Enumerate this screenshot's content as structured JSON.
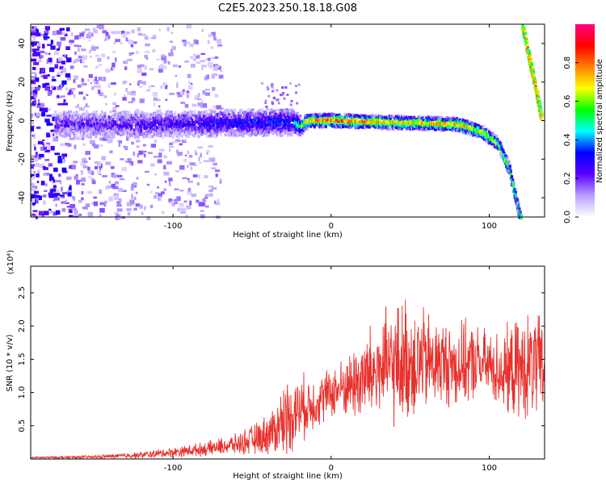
{
  "title": "C2E5.2023.250.18.18.G08",
  "chart_data": [
    {
      "type": "heatmap",
      "xlabel": "Height of straight line (km)",
      "ylabel": "Frequency (Hz)",
      "xlim": [
        -190,
        135
      ],
      "ylim": [
        -50,
        50
      ],
      "xticks": [
        {
          "v": -100,
          "label": "-100"
        },
        {
          "v": 0,
          "label": "0"
        },
        {
          "v": 100,
          "label": "100"
        }
      ],
      "yticks": [
        {
          "v": -40,
          "label": "-40"
        },
        {
          "v": -20,
          "label": "-20"
        },
        {
          "v": 0,
          "label": "0"
        },
        {
          "v": 20,
          "label": "20"
        },
        {
          "v": 40,
          "label": "40"
        }
      ],
      "colorbar": {
        "label": "Normalized spectral amplitude",
        "range": [
          0,
          1
        ],
        "ticks": [
          {
            "v": 0.0,
            "label": "0.0"
          },
          {
            "v": 0.2,
            "label": "0.2"
          },
          {
            "v": 0.4,
            "label": "0.4"
          },
          {
            "v": 0.6,
            "label": "0.6"
          },
          {
            "v": 0.8,
            "label": "0.8"
          }
        ],
        "colors": [
          "#ffffff",
          "#b8a0ff",
          "#5a00ff",
          "#0000ff",
          "#00ffff",
          "#00ff00",
          "#ffff00",
          "#ff8000",
          "#ff0000",
          "#ff0080"
        ]
      },
      "ridge": [
        {
          "x": -165,
          "y": -2,
          "amp": 0.2,
          "spread": 3
        },
        {
          "x": -120,
          "y": -2,
          "amp": 0.25,
          "spread": 3
        },
        {
          "x": -80,
          "y": -1.5,
          "amp": 0.3,
          "spread": 3
        },
        {
          "x": -40,
          "y": -1,
          "amp": 0.35,
          "spread": 3
        },
        {
          "x": -25,
          "y": -1,
          "amp": 0.35,
          "spread": 3
        },
        {
          "x": -20,
          "y": -3,
          "amp": 0.55,
          "spread": 2
        },
        {
          "x": -15,
          "y": 0,
          "amp": 0.8,
          "spread": 1.5
        },
        {
          "x": 0,
          "y": 0,
          "amp": 0.9,
          "spread": 1.5
        },
        {
          "x": 40,
          "y": -1,
          "amp": 0.75,
          "spread": 1.5
        },
        {
          "x": 80,
          "y": -2,
          "amp": 0.8,
          "spread": 1.5
        },
        {
          "x": 95,
          "y": -6,
          "amp": 0.7,
          "spread": 1.5
        },
        {
          "x": 105,
          "y": -12,
          "amp": 0.65,
          "spread": 1.5
        },
        {
          "x": 112,
          "y": -25,
          "amp": 0.6,
          "spread": 1.5
        },
        {
          "x": 119,
          "y": -50,
          "amp": 0.6,
          "spread": 1.5
        }
      ],
      "upper_ridge": [
        {
          "x": 121,
          "y": 50
        },
        {
          "x": 126,
          "y": 30
        },
        {
          "x": 130,
          "y": 15
        },
        {
          "x": 133,
          "y": 2
        }
      ]
    },
    {
      "type": "line",
      "xlabel": "Height of straight line (km)",
      "ylabel": "SNR (10 * v/v)",
      "y_multiplier": "(x10⁴)",
      "xlim": [
        -190,
        135
      ],
      "ylim": [
        0,
        2.9
      ],
      "xticks": [
        {
          "v": -100,
          "label": "-100"
        },
        {
          "v": 0,
          "label": "0"
        },
        {
          "v": 100,
          "label": "100"
        }
      ],
      "yticks": [
        {
          "v": 0.5,
          "label": "0.5"
        },
        {
          "v": 1.0,
          "label": "1.0"
        },
        {
          "v": 1.5,
          "label": "1.5"
        },
        {
          "v": 2.0,
          "label": "2.0"
        },
        {
          "v": 2.5,
          "label": "2.5"
        }
      ],
      "color": "#e8312c",
      "envelope": {
        "x": [
          -190,
          -150,
          -120,
          -100,
          -80,
          -60,
          -45,
          -35,
          -30,
          -20,
          -10,
          0,
          10,
          20,
          30,
          40,
          50,
          60,
          70,
          80,
          90,
          100,
          110,
          120,
          130,
          135
        ],
        "mean": [
          0.02,
          0.03,
          0.06,
          0.1,
          0.15,
          0.22,
          0.32,
          0.45,
          0.6,
          0.75,
          0.85,
          1.0,
          1.1,
          1.2,
          1.35,
          1.4,
          1.5,
          1.45,
          1.45,
          1.4,
          1.45,
          1.4,
          1.3,
          1.35,
          1.4,
          1.3
        ],
        "amplitude": [
          0.01,
          0.02,
          0.04,
          0.06,
          0.08,
          0.12,
          0.2,
          0.3,
          0.45,
          0.4,
          0.3,
          0.3,
          0.35,
          0.55,
          0.6,
          0.7,
          0.75,
          0.6,
          0.5,
          0.5,
          0.45,
          0.4,
          0.5,
          0.6,
          0.65,
          0.5
        ]
      }
    }
  ]
}
